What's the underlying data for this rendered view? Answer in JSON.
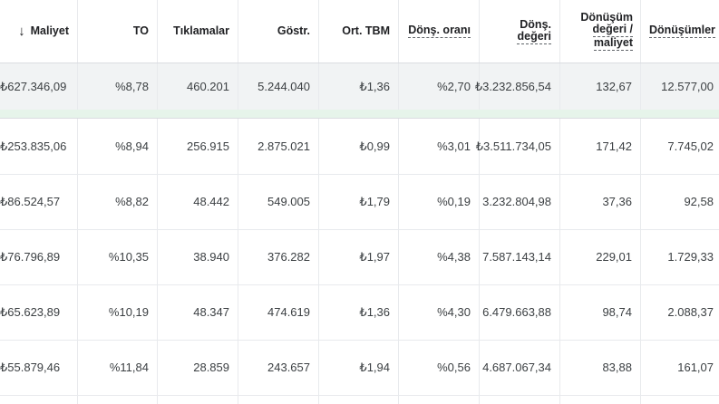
{
  "columns": [
    {
      "key": "cost",
      "label": "Maliyet",
      "sorted": "desc",
      "sort_icon": "arrow-down-icon"
    },
    {
      "key": "ctr",
      "label": "TO"
    },
    {
      "key": "clicks",
      "label": "Tıklamalar"
    },
    {
      "key": "impr",
      "label": "Göstr."
    },
    {
      "key": "avg_cpc",
      "label": "Ort. TBM"
    },
    {
      "key": "conv_rate",
      "label": "Dönş. oranı"
    },
    {
      "key": "conv_value",
      "label_lines": [
        "Dönş.",
        "değeri"
      ]
    },
    {
      "key": "conv_value_cost",
      "label_lines": [
        "Dönüşüm",
        "değeri /",
        "maliyet"
      ]
    },
    {
      "key": "conversions",
      "label": "Dönüşümler"
    }
  ],
  "total_row": [
    "₺627.346,09",
    "%8,78",
    "460.201",
    "5.244.040",
    "₺1,36",
    "%2,70",
    "₺3.232.856,54",
    "132,67",
    "12.577,00"
  ],
  "rows": [
    [
      "₺253.835,06",
      "%8,94",
      "256.915",
      "2.875.021",
      "₺0,99",
      "%3,01",
      "₺3.511.734,05",
      "171,42",
      "7.745,02"
    ],
    [
      "₺86.524,57",
      "%8,82",
      "48.442",
      "549.005",
      "₺1,79",
      "%0,19",
      "3.232.804,98",
      "37,36",
      "92,58"
    ],
    [
      "₺76.796,89",
      "%10,35",
      "38.940",
      "376.282",
      "₺1,97",
      "%4,38",
      "7.587.143,14",
      "229,01",
      "1.729,33"
    ],
    [
      "₺65.623,89",
      "%10,19",
      "48.347",
      "474.619",
      "₺1,36",
      "%4,30",
      "6.479.663,88",
      "98,74",
      "2.088,37"
    ],
    [
      "₺55.879,46",
      "%11,84",
      "28.859",
      "243.657",
      "₺1,94",
      "%0,56",
      "4.687.067,34",
      "83,88",
      "161,07"
    ]
  ]
}
